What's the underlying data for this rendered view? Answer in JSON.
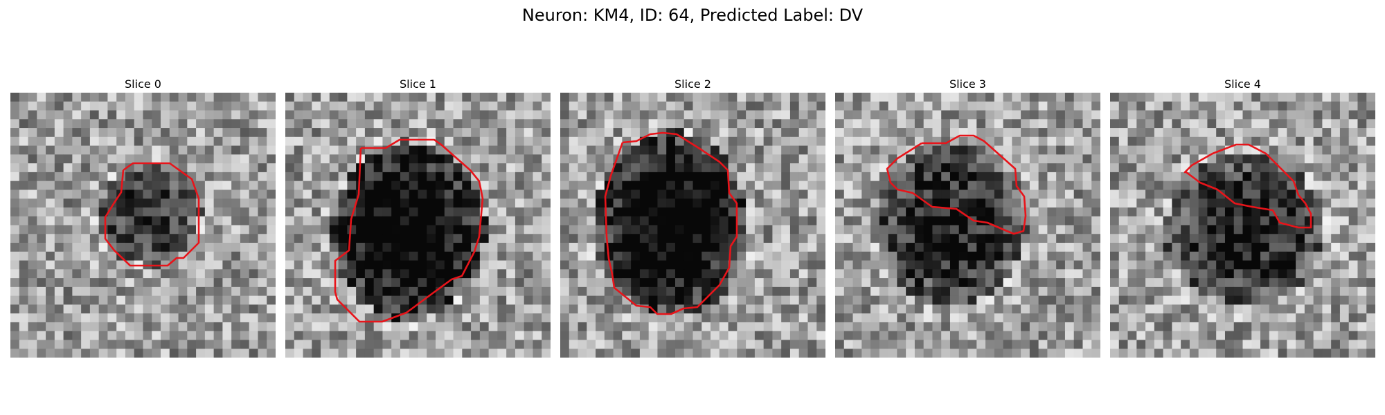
{
  "figure": {
    "title": "Neuron: KM4, ID: 64, Predicted Label: DV"
  },
  "colors": {
    "outline": "#e8141a",
    "background": "#ffffff"
  },
  "slices": [
    {
      "label": "Slice 0",
      "index": 0
    },
    {
      "label": "Slice 1",
      "index": 1
    },
    {
      "label": "Slice 2",
      "index": 2
    },
    {
      "label": "Slice 3",
      "index": 3
    },
    {
      "label": "Slice 4",
      "index": 4
    }
  ]
}
